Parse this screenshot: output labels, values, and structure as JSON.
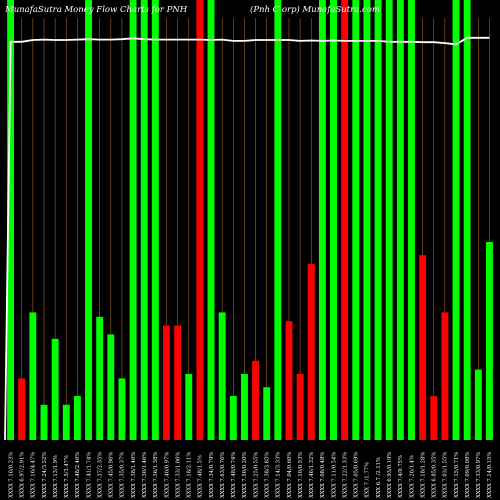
{
  "title": "MunafaSutra  Money Flow  Charts for PNH",
  "title_right": "(Pnh C                  orp) MunafaSutra.com",
  "colors": {
    "background": "#000000",
    "green": "#00ff00",
    "red": "#ff0000",
    "gridline": "#a0662a",
    "line": "#ffffff"
  },
  "chart_data": {
    "type": "bar",
    "title": "MunafaSutra  Money Flow  Charts for PNH",
    "ylim": [
      0,
      100
    ],
    "grid": true,
    "categories": [
      "XXXX 7.16/0.23%",
      "XXXX 6.97/2.91%",
      "XXXX 7.16/4.47%",
      "XXXX 7.24/3.52%",
      "XXXX 7.13/1.9%",
      "XXXX 7.5/3.47%",
      "XXXX 7.48/2.46%",
      "XXXX 7.41/1.74%",
      "XXXX 7.37/2.35%",
      "XXXX 7.45/0.96%",
      "XXXX 7.35/0.37%",
      "XXXX 7.38/1.46%",
      "XXXX 7.30/1.46%",
      "XXXX 7.36/1.38%",
      "XXXX 7.40/0.97%",
      "XXXX 7.33/1.06%",
      "XXXX 7.18/2.11%",
      "XXXX 7.48/1.5%",
      "XXXX 7.34/0.79%",
      "XXXX 7.63/0.76%",
      "XXXX 7.48/0.74%",
      "XXXX 7.50/0.20%",
      "XXXX 7.25/0.55%",
      "XXXX 7.38/3.85%",
      "XXXX 7.14/3.33%",
      "XXXX 7.04/0.60%",
      "XXXX 7.10/0.53%",
      "XXXX 7.46/1.32%",
      "XXXX 7.08/0.48%",
      "XXXX 7.11/0.54%",
      "XXXX 7.22/1.33%",
      "XXXX 7.05/0.69%",
      "XXX 7 /1.77%",
      "XXX 6.7 /2.11%",
      "XXXX 6.93/0.19%",
      "XXXX 7.4/0.75%",
      "XXXX 7.26/1.4%",
      "XXXX 7.18/1.28%",
      "XXXX 6.85/0.35%",
      "XXXX 7.03/1.55%",
      "XXXX 7.15/0.71%",
      "XXXX 7.09/0.08%",
      "XXXX 7.33/0.97%",
      "XXXX 7.14/0.15%"
    ],
    "series": [
      {
        "values": [
          100,
          14,
          29,
          8,
          23,
          8,
          10,
          100,
          28,
          24,
          14,
          100,
          100,
          100,
          26,
          26,
          15,
          100,
          100,
          29,
          10,
          15,
          18,
          12,
          100,
          27,
          15,
          40,
          100,
          100,
          100,
          100,
          100,
          100,
          100,
          100,
          100,
          42,
          10,
          29,
          100,
          100,
          16,
          45
        ],
        "colors": [
          "green",
          "red",
          "green",
          "green",
          "green",
          "green",
          "green",
          "green",
          "green",
          "green",
          "green",
          "green",
          "green",
          "green",
          "red",
          "red",
          "green",
          "red",
          "green",
          "green",
          "green",
          "green",
          "red",
          "green",
          "green",
          "red",
          "red",
          "red",
          "green",
          "green",
          "red",
          "green",
          "green",
          "green",
          "green",
          "green",
          "green",
          "red",
          "red",
          "red",
          "green",
          "green",
          "green",
          "green"
        ]
      }
    ],
    "line": {
      "values": [
        73.0,
        73.0,
        73.4,
        73.5,
        73.4,
        73.4,
        73.5,
        73.6,
        73.5,
        73.5,
        73.6,
        73.8,
        73.6,
        73.5,
        73.5,
        73.5,
        73.5,
        73.5,
        73.4,
        73.5,
        73.2,
        73.2,
        73.4,
        73.4,
        73.4,
        73.4,
        73.2,
        73.3,
        73.2,
        73.3,
        73.2,
        73.2,
        73.2,
        73.2,
        73.0,
        73.0,
        73.0,
        72.9,
        72.9,
        72.7,
        72.4,
        73.9,
        73.9,
        73.9
      ],
      "start": 0
    }
  }
}
